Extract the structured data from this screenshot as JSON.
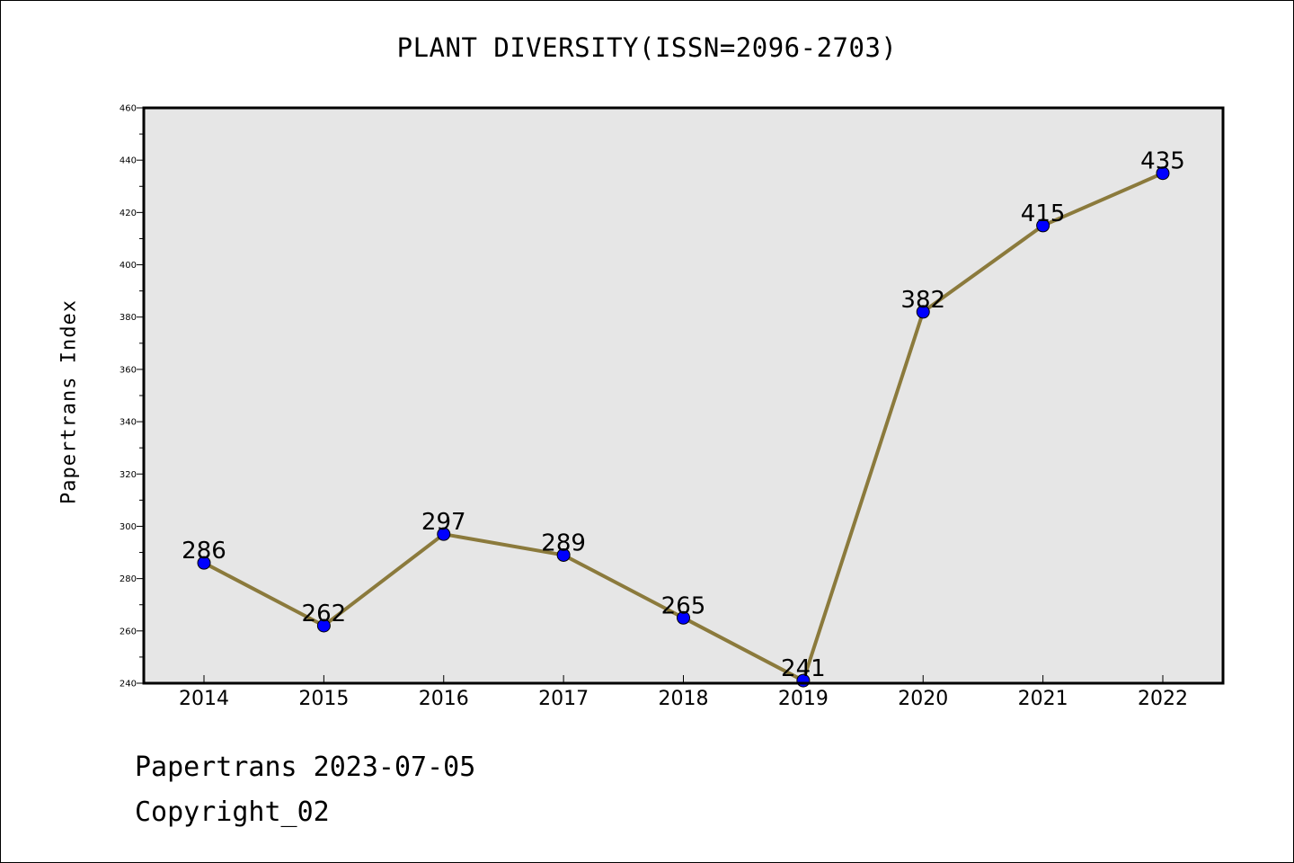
{
  "chart_data": {
    "type": "line",
    "title": "PLANT DIVERSITY(ISSN=2096-2703)",
    "xlabel": "",
    "ylabel": "Papertrans Index",
    "categories": [
      "2014",
      "2015",
      "2016",
      "2017",
      "2018",
      "2019",
      "2020",
      "2021",
      "2022"
    ],
    "values": [
      286,
      262,
      297,
      289,
      265,
      241,
      382,
      415,
      435
    ],
    "data_labels": [
      "286",
      "262",
      "297",
      "289",
      "265",
      "241",
      "382",
      "415",
      "435"
    ],
    "ylim": [
      240,
      460
    ],
    "y_ticks": [
      "240",
      "260",
      "280",
      "300",
      "320",
      "340",
      "360",
      "380",
      "400",
      "420",
      "440",
      "460"
    ],
    "grid": false,
    "legend": "none",
    "colors": {
      "line": "#8b7a3c",
      "marker": "#0000ff",
      "plot_background": "#e6e6e6",
      "axes": "#000000"
    }
  },
  "footer": {
    "date_text": "Papertrans 2023-07-05",
    "copyright_text": "Copyright_02"
  }
}
